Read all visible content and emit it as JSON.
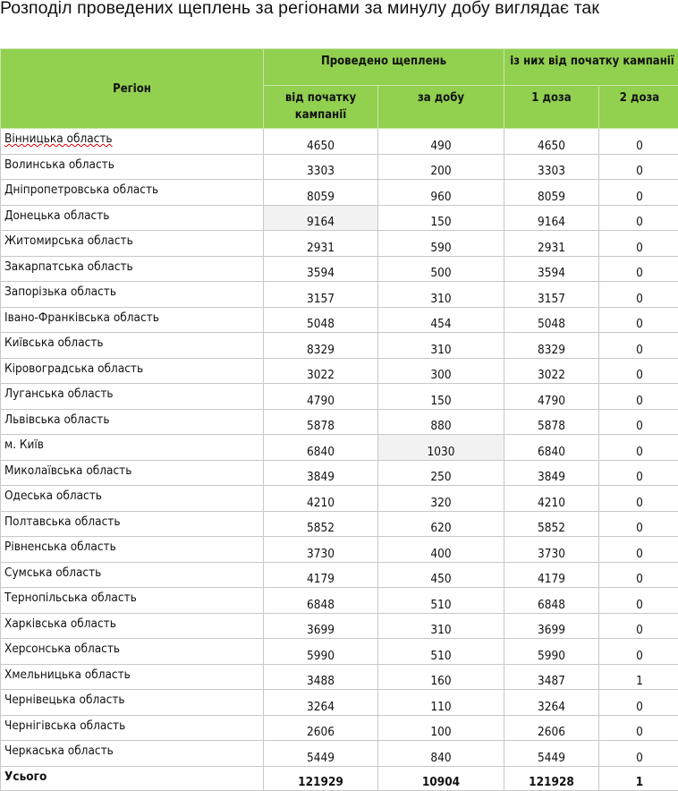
{
  "title": "Розподіл проведених щеплень за регіонами за минулу добу виглядає так",
  "headers": {
    "region": "Регіон",
    "group1": "Проведено щеплень",
    "group2": "із них від початку кампанії",
    "since_start": "від початку кампанії",
    "per_day": "за добу",
    "dose1": "1 доза",
    "dose2": "2 доза"
  },
  "colors": {
    "header_bg": "#92d050",
    "highlight_cell": "#f2f2f2"
  },
  "rows": [
    [
      "Вінницька область",
      "4650",
      "490",
      "4650",
      "0"
    ],
    [
      "Волинська область",
      "3303",
      "200",
      "3303",
      "0"
    ],
    [
      "Дніпропетровська область",
      "8059",
      "960",
      "8059",
      "0"
    ],
    [
      "Донецька область",
      "9164",
      "150",
      "9164",
      "0"
    ],
    [
      "Житомирська область",
      "2931",
      "590",
      "2931",
      "0"
    ],
    [
      "Закарпатська область",
      "3594",
      "500",
      "3594",
      "0"
    ],
    [
      "Запорізька область",
      "3157",
      "310",
      "3157",
      "0"
    ],
    [
      "Івано-Франківська область",
      "5048",
      "454",
      "5048",
      "0"
    ],
    [
      "Київська область",
      "8329",
      "310",
      "8329",
      "0"
    ],
    [
      "Кіровоградська область",
      "3022",
      "300",
      "3022",
      "0"
    ],
    [
      "Луганська область",
      "4790",
      "150",
      "4790",
      "0"
    ],
    [
      "Львівська область",
      "5878",
      "880",
      "5878",
      "0"
    ],
    [
      "м. Київ",
      "6840",
      "1030",
      "6840",
      "0"
    ],
    [
      "Миколаївська область",
      "3849",
      "250",
      "3849",
      "0"
    ],
    [
      "Одеська область",
      "4210",
      "320",
      "4210",
      "0"
    ],
    [
      "Полтавська область",
      "5852",
      "620",
      "5852",
      "0"
    ],
    [
      "Рівненська область",
      "3730",
      "400",
      "3730",
      "0"
    ],
    [
      "Сумська область",
      "4179",
      "450",
      "4179",
      "0"
    ],
    [
      "Тернопільська область",
      "6848",
      "510",
      "6848",
      "0"
    ],
    [
      "Харківська область",
      "3699",
      "310",
      "3699",
      "0"
    ],
    [
      "Херсонська область",
      "5990",
      "510",
      "5990",
      "0"
    ],
    [
      "Хмельницька область",
      "3488",
      "160",
      "3487",
      "1"
    ],
    [
      "Чернівецька область",
      "3264",
      "110",
      "3264",
      "0"
    ],
    [
      "Чернігівська область",
      "2606",
      "100",
      "2606",
      "0"
    ],
    [
      "Черкаська область",
      "5449",
      "840",
      "5449",
      "0"
    ]
  ],
  "total": [
    "Усього",
    "121929",
    "10904",
    "121928",
    "1"
  ]
}
